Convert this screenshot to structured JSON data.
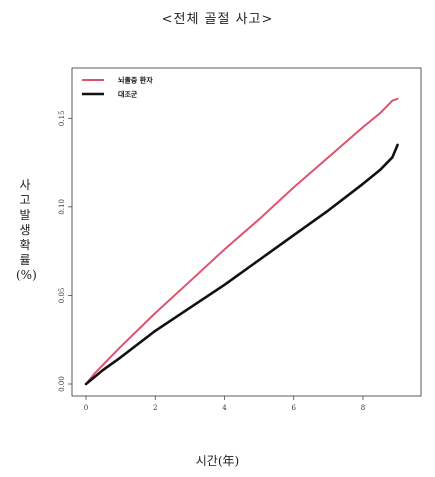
{
  "chart_data": {
    "type": "line",
    "title": "<전체 골절 사고>",
    "xlabel": "시간(年)",
    "ylabel": "사고 발생 확률(%)",
    "xlim": [
      0,
      9.3
    ],
    "ylim": [
      0,
      0.175
    ],
    "xticks": [
      "0",
      "2",
      "4",
      "6",
      "8"
    ],
    "xtick_values": [
      0,
      2,
      4,
      6,
      8
    ],
    "yticks": [
      "0.00",
      "0.05",
      "0.10",
      "0.15"
    ],
    "ytick_values": [
      0,
      0.05,
      0.1,
      0.15
    ],
    "grid": false,
    "legend_position": "top-left",
    "series": [
      {
        "name": "뇌졸중 환자",
        "color": "#e0536e",
        "x": [
          0,
          0.25,
          0.5,
          1,
          2,
          3,
          4,
          5,
          6,
          7,
          8,
          8.5,
          8.85,
          9.0
        ],
        "y": [
          0,
          0.006,
          0.011,
          0.021,
          0.04,
          0.058,
          0.076,
          0.093,
          0.111,
          0.128,
          0.145,
          0.153,
          0.16,
          0.161
        ]
      },
      {
        "name": "대조군",
        "color": "#111111",
        "x": [
          0,
          0.25,
          0.5,
          1,
          2,
          3,
          4,
          5,
          6,
          7,
          8,
          8.5,
          8.85,
          9.0
        ],
        "y": [
          0,
          0.004,
          0.008,
          0.015,
          0.03,
          0.043,
          0.056,
          0.07,
          0.084,
          0.098,
          0.113,
          0.121,
          0.128,
          0.135
        ]
      }
    ]
  }
}
